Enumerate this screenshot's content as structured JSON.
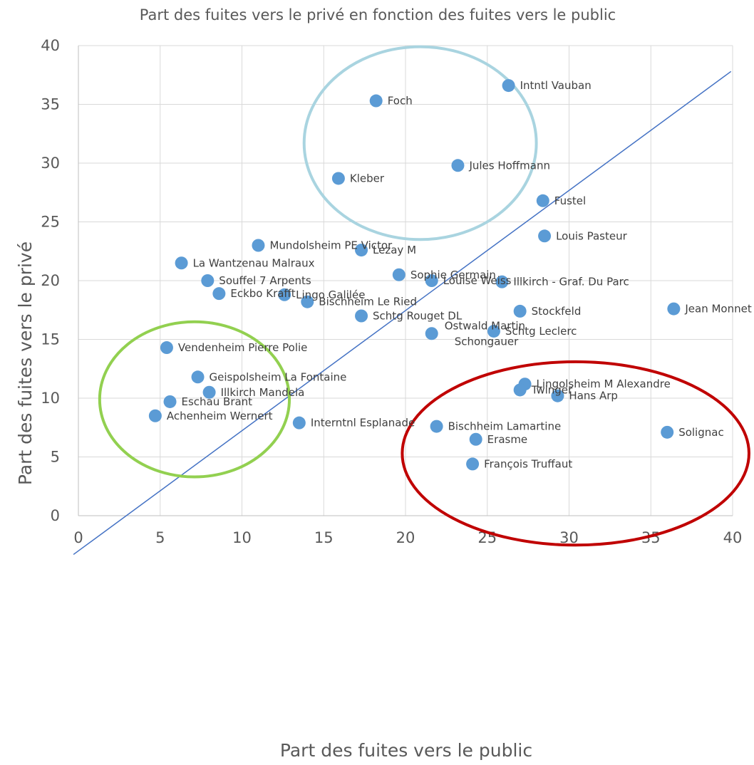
{
  "chart_data": {
    "type": "scatter",
    "title": "Part des fuites vers le privé en fonction des fuites vers le public",
    "xlabel": "Part des fuites vers le public",
    "ylabel": "Part des fuites vers le privé",
    "xlim": [
      0,
      40
    ],
    "ylim": [
      0,
      40
    ],
    "x_ticks": [
      "0",
      "5",
      "10",
      "15",
      "20",
      "25",
      "30",
      "35",
      "40"
    ],
    "y_ticks": [
      "0",
      "5",
      "10",
      "15",
      "20",
      "25",
      "30",
      "35",
      "40"
    ],
    "grid": true,
    "marker_color": "#5b9bd5",
    "points": [
      {
        "label": "Intntl Vauban",
        "x": 26.3,
        "y": 36.6
      },
      {
        "label": "Foch",
        "x": 18.2,
        "y": 35.3
      },
      {
        "label": "Jules Hoffmann",
        "x": 23.2,
        "y": 29.8
      },
      {
        "label": "Kleber",
        "x": 15.9,
        "y": 28.7
      },
      {
        "label": "Fustel",
        "x": 28.4,
        "y": 26.8
      },
      {
        "label": "Louis Pasteur",
        "x": 28.5,
        "y": 23.8
      },
      {
        "label": "Mundolsheim PE Victor",
        "x": 11.0,
        "y": 23.0
      },
      {
        "label": "Lezay M",
        "x": 17.3,
        "y": 22.6
      },
      {
        "label": "La Wantzenau Malraux",
        "x": 6.3,
        "y": 21.5
      },
      {
        "label": "Sophie Germain",
        "x": 19.6,
        "y": 20.5
      },
      {
        "label": "Louise Weiss",
        "x": 21.6,
        "y": 20.0
      },
      {
        "label": "Illkirch - Graf. Du Parc",
        "x": 25.9,
        "y": 19.9
      },
      {
        "label": "Souffel 7 Arpents",
        "x": 7.9,
        "y": 20.0
      },
      {
        "label": "Eckbo Krafft",
        "x": 8.6,
        "y": 18.9
      },
      {
        "label": "Lingo Galilée",
        "x": 12.6,
        "y": 18.8
      },
      {
        "label": "Bischheim Le Ried",
        "x": 14.0,
        "y": 18.2
      },
      {
        "label": "Jean Monnet",
        "x": 36.4,
        "y": 17.6
      },
      {
        "label": "Stockfeld",
        "x": 27.0,
        "y": 17.4
      },
      {
        "label": "Schtg Rouget DL",
        "x": 17.3,
        "y": 17.0
      },
      {
        "label": "Ostwald Martin Schongauer",
        "x": 21.6,
        "y": 15.5
      },
      {
        "label": "Schtg Leclerc",
        "x": 25.4,
        "y": 15.7
      },
      {
        "label": "Vendenheim Pierre Polie",
        "x": 5.4,
        "y": 14.3
      },
      {
        "label": "Geispolsheim La Fontaine",
        "x": 7.3,
        "y": 11.8
      },
      {
        "label": "Illkirch Mandela",
        "x": 8.0,
        "y": 10.5
      },
      {
        "label": "Eschau Brant",
        "x": 5.6,
        "y": 9.7
      },
      {
        "label": "Achenheim Wernert",
        "x": 4.7,
        "y": 8.5
      },
      {
        "label": "Interntnl Esplanade",
        "x": 13.5,
        "y": 7.9
      },
      {
        "label": "Lingolsheim M Alexandre",
        "x": 27.3,
        "y": 11.2
      },
      {
        "label": "Twinger",
        "x": 27.0,
        "y": 10.7
      },
      {
        "label": "Hans Arp",
        "x": 29.3,
        "y": 10.2
      },
      {
        "label": "Bischheim Lamartine",
        "x": 21.9,
        "y": 7.6
      },
      {
        "label": "Erasme",
        "x": 24.3,
        "y": 6.5
      },
      {
        "label": "Solignac",
        "x": 36.0,
        "y": 7.1
      },
      {
        "label": "François Truffaut",
        "x": 24.1,
        "y": 4.4
      }
    ],
    "trendline": {
      "x1": -0.3,
      "y1": -3.3,
      "x2": 39.9,
      "y2": 37.8,
      "color": "#4472c4"
    },
    "highlight_ellipses": [
      {
        "color": "#a9d4e0",
        "cx": 20.9,
        "cy": 31.7,
        "rx": 7.1,
        "ry": 8.2
      },
      {
        "color": "#92d050",
        "cx": 7.1,
        "cy": 9.9,
        "rx": 5.8,
        "ry": 6.6
      },
      {
        "color": "#c00000",
        "cx": 30.4,
        "cy": 5.3,
        "rx": 10.6,
        "ry": 7.8
      }
    ]
  }
}
